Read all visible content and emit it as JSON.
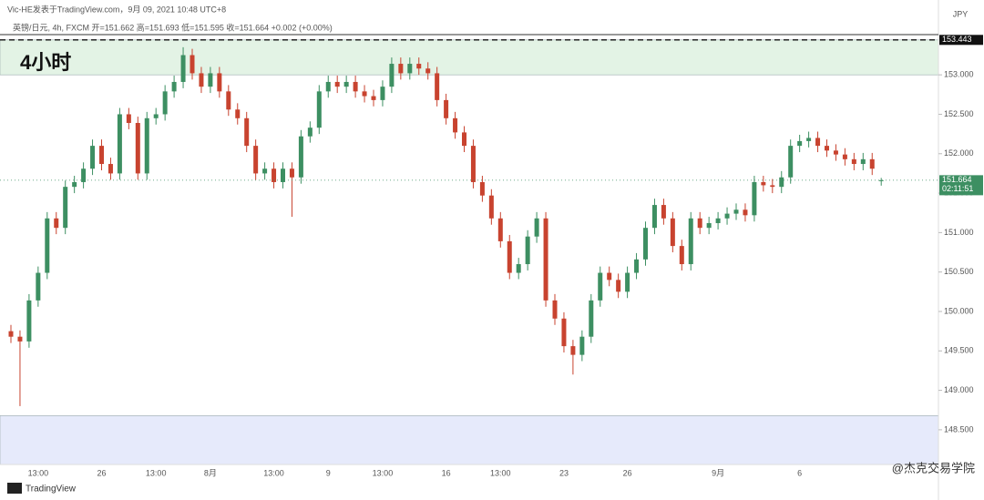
{
  "chart_data": {
    "type": "candlestick",
    "header": "Vic-HE发表于TradingView.com，9月 09, 2021 10:48 UTC+8",
    "legend_text": "英镑/日元, 4h, FXCM  开=151.662  高=151.693  低=151.595  收=151.664  +0.002 (+0.00%)",
    "label": "4小时",
    "currency": "JPY",
    "footer": "TradingView",
    "watermark": "@杰克交易学院",
    "up_color": "#3d8f62",
    "down_color": "#c8432f",
    "categories": [
      null,
      null,
      null,
      "13:00",
      null,
      null,
      null,
      null,
      null,
      null,
      "26",
      null,
      null,
      null,
      null,
      null,
      "13:00",
      null,
      null,
      null,
      null,
      null,
      "8月",
      null,
      null,
      null,
      null,
      null,
      null,
      "13:00",
      null,
      null,
      null,
      null,
      null,
      "9",
      null,
      null,
      null,
      null,
      null,
      "13:00",
      null,
      null,
      null,
      null,
      null,
      null,
      "16",
      null,
      null,
      null,
      null,
      null,
      "13:00",
      null,
      null,
      null,
      null,
      null,
      null,
      "23",
      null,
      null,
      null,
      null,
      null,
      null,
      "26",
      null,
      null,
      null,
      null,
      null,
      null,
      null,
      null,
      null,
      "9月",
      null,
      null,
      null,
      null,
      null,
      null,
      null,
      null,
      "6",
      null,
      null,
      null,
      null,
      null,
      null,
      null,
      null,
      null
    ],
    "open": [
      149.75,
      149.68,
      149.62,
      150.14,
      150.49,
      151.18,
      151.06,
      151.58,
      151.64,
      151.81,
      152.1,
      151.87,
      151.75,
      152.5,
      152.39,
      151.75,
      152.45,
      152.5,
      152.79,
      152.91,
      153.25,
      153.02,
      152.85,
      153.02,
      152.79,
      152.56,
      152.45,
      152.1,
      151.75,
      151.81,
      151.64,
      151.81,
      151.7,
      152.22,
      152.33,
      152.79,
      152.91,
      152.85,
      152.91,
      152.79,
      152.73,
      152.68,
      152.85,
      153.14,
      153.02,
      153.14,
      153.08,
      153.02,
      152.68,
      152.45,
      152.27,
      152.1,
      151.64,
      151.47,
      151.18,
      150.89,
      150.49,
      150.6,
      150.95,
      151.18,
      150.14,
      149.91,
      149.56,
      149.45,
      149.68,
      150.14,
      150.49,
      150.4,
      150.25,
      150.49,
      150.66,
      151.06,
      151.35,
      151.18,
      150.83,
      150.6,
      151.18,
      151.06,
      151.12,
      151.18,
      151.24,
      151.29,
      151.22,
      151.64,
      151.6,
      151.58,
      151.7,
      152.1,
      152.16,
      152.2,
      152.1,
      152.04,
      151.99,
      151.93,
      151.87,
      151.93,
      151.662
    ],
    "high": [
      149.83,
      149.76,
      150.22,
      150.57,
      151.26,
      151.26,
      151.66,
      151.72,
      151.89,
      152.18,
      152.18,
      151.95,
      152.58,
      152.58,
      152.47,
      152.53,
      152.58,
      152.87,
      152.99,
      153.35,
      153.33,
      153.1,
      153.1,
      153.1,
      152.87,
      152.64,
      152.53,
      152.18,
      151.89,
      151.89,
      151.89,
      151.89,
      152.3,
      152.41,
      152.87,
      152.99,
      152.99,
      152.99,
      152.99,
      152.87,
      152.81,
      152.93,
      153.22,
      153.22,
      153.22,
      153.22,
      153.16,
      153.1,
      152.76,
      152.53,
      152.35,
      152.18,
      151.72,
      151.55,
      151.26,
      150.97,
      150.68,
      151.03,
      151.26,
      151.26,
      150.22,
      149.99,
      149.64,
      149.76,
      150.22,
      150.57,
      150.57,
      150.48,
      150.57,
      150.74,
      151.14,
      151.43,
      151.43,
      151.26,
      150.91,
      151.26,
      151.26,
      151.2,
      151.26,
      151.32,
      151.37,
      151.37,
      151.72,
      151.72,
      151.68,
      151.78,
      152.18,
      152.24,
      152.28,
      152.28,
      152.18,
      152.12,
      152.07,
      152.01,
      152.01,
      152.01,
      151.693
    ],
    "low": [
      149.6,
      148.8,
      149.54,
      150.06,
      150.41,
      150.98,
      150.98,
      151.5,
      151.56,
      151.73,
      151.79,
      151.67,
      151.67,
      152.31,
      151.67,
      151.67,
      152.37,
      152.42,
      152.71,
      152.83,
      152.94,
      152.77,
      152.77,
      152.71,
      152.48,
      152.37,
      152.02,
      151.67,
      151.67,
      151.56,
      151.56,
      151.2,
      151.62,
      152.14,
      152.25,
      152.71,
      152.77,
      152.77,
      152.71,
      152.65,
      152.6,
      152.6,
      152.77,
      152.94,
      152.94,
      153.0,
      152.94,
      152.6,
      152.37,
      152.19,
      152.02,
      151.56,
      151.39,
      151.1,
      150.81,
      150.41,
      150.41,
      150.52,
      150.87,
      150.06,
      149.83,
      149.48,
      149.2,
      149.37,
      149.6,
      150.06,
      150.32,
      150.17,
      150.17,
      150.41,
      150.58,
      150.98,
      151.1,
      150.75,
      150.52,
      150.52,
      150.98,
      150.98,
      151.04,
      151.1,
      151.16,
      151.14,
      151.14,
      151.52,
      151.5,
      151.5,
      151.62,
      152.02,
      152.08,
      152.02,
      151.96,
      151.91,
      151.85,
      151.79,
      151.79,
      151.73,
      151.595
    ],
    "close": [
      149.68,
      149.62,
      150.14,
      150.49,
      151.18,
      151.06,
      151.58,
      151.64,
      151.81,
      152.1,
      151.87,
      151.75,
      152.5,
      152.39,
      151.75,
      152.45,
      152.5,
      152.79,
      152.91,
      153.25,
      153.02,
      152.85,
      153.02,
      152.79,
      152.56,
      152.45,
      152.1,
      151.75,
      151.81,
      151.64,
      151.81,
      151.7,
      152.22,
      152.33,
      152.79,
      152.91,
      152.85,
      152.91,
      152.79,
      152.73,
      152.68,
      152.85,
      153.14,
      153.02,
      153.14,
      153.08,
      153.02,
      152.68,
      152.45,
      152.27,
      152.1,
      151.64,
      151.47,
      151.18,
      150.89,
      150.49,
      150.6,
      150.95,
      151.18,
      150.14,
      149.91,
      149.56,
      149.45,
      149.68,
      150.14,
      150.49,
      150.4,
      150.25,
      150.49,
      150.66,
      151.06,
      151.35,
      151.18,
      150.83,
      150.6,
      151.18,
      151.06,
      151.12,
      151.18,
      151.24,
      151.29,
      151.22,
      151.64,
      151.6,
      151.58,
      151.7,
      152.1,
      152.16,
      152.2,
      152.1,
      152.04,
      151.99,
      151.93,
      151.87,
      151.93,
      151.81,
      151.664
    ],
    "ylim": [
      148.06,
      153.51
    ],
    "yticks": [
      {
        "value": 148.5,
        "label": "148.500"
      },
      {
        "value": 149.0,
        "label": "149.000"
      },
      {
        "value": 149.5,
        "label": "149.500"
      },
      {
        "value": 150.0,
        "label": "150.000"
      },
      {
        "value": 150.5,
        "label": "150.500"
      },
      {
        "value": 151.0,
        "label": "151.000"
      },
      {
        "value": 151.5,
        "label": "151.500"
      },
      {
        "value": 152.0,
        "label": "152.000"
      },
      {
        "value": 152.5,
        "label": "152.500"
      },
      {
        "value": 153.0,
        "label": "153.000"
      }
    ],
    "zones": [
      {
        "from": 153.0,
        "to": 153.443,
        "color": "#e3f3e5"
      },
      {
        "from": 148.0,
        "to": 148.68,
        "color": "#e6eafb"
      }
    ],
    "levels": [
      {
        "value": 153.443,
        "label": "153.443",
        "style": "dashed",
        "color": "#111111"
      },
      {
        "value": 151.664,
        "label": "151.664",
        "sublabel": "02:11:51",
        "style": "dotted",
        "color": "#3d8f62"
      }
    ]
  }
}
